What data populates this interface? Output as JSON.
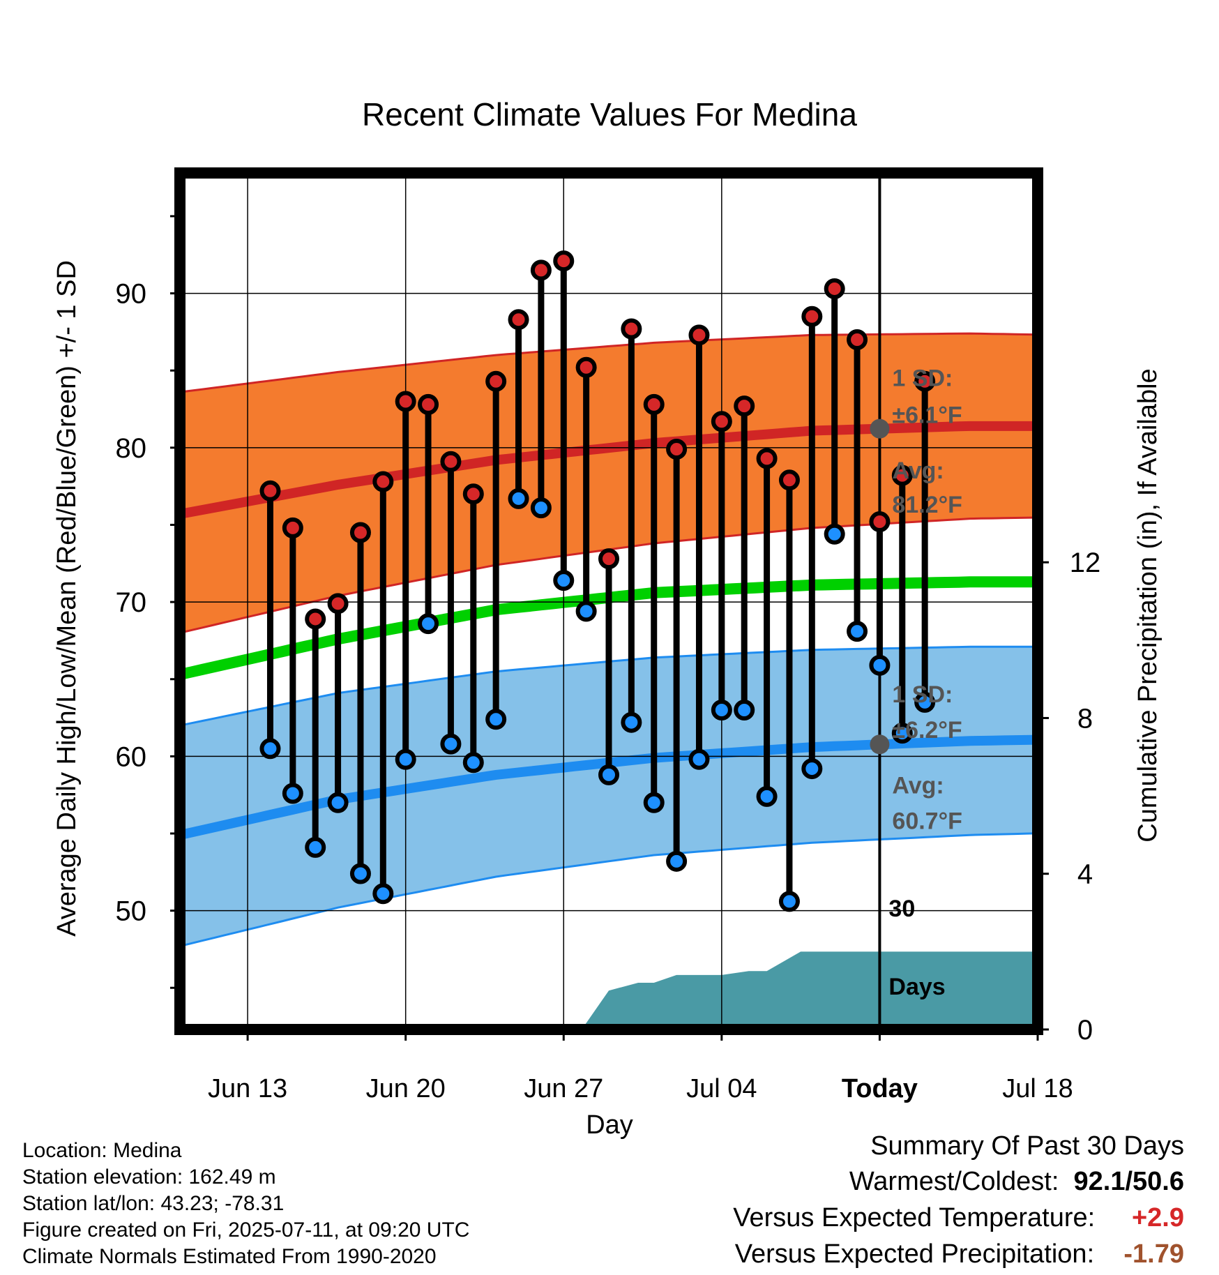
{
  "chart_data": {
    "type": "line",
    "title": "Recent Climate Values For Medina",
    "xlabel": "Day",
    "ylabel": "Average Daily High/Low/Mean (Red/Blue/Green) +/- 1 SD",
    "ylabel_right": "Cumulative Precipitation (in), If Available",
    "xlim_day": [
      -13,
      25
    ],
    "ylim": [
      42.3,
      97.8
    ],
    "y2lim": [
      0,
      22
    ],
    "y_ticks": [
      50,
      60,
      70,
      80,
      90
    ],
    "y_minor_ticks": [
      45,
      55,
      65,
      75,
      85,
      95
    ],
    "y2_ticks": [
      0,
      4,
      8,
      12
    ],
    "x_ticks": [
      {
        "day": -10,
        "label": "Jun 13"
      },
      {
        "day": -3,
        "label": "Jun 20"
      },
      {
        "day": 4,
        "label": "Jun 27"
      },
      {
        "day": 11,
        "label": "Jul 04"
      },
      {
        "day": 18,
        "label": "Today"
      },
      {
        "day": 25,
        "label": "Jul 18"
      }
    ],
    "today_day": 18,
    "grid": true,
    "normals": {
      "x": [
        -13,
        -6,
        1,
        8,
        15,
        22,
        30
      ],
      "high_mean": [
        75.7,
        77.6,
        79.2,
        80.3,
        81.1,
        81.4,
        81.4
      ],
      "high_upper": [
        83.6,
        84.9,
        86.0,
        86.8,
        87.3,
        87.4,
        87.2
      ],
      "high_lower": [
        68.0,
        70.4,
        72.4,
        73.8,
        74.8,
        75.4,
        75.6
      ],
      "mean": [
        65.3,
        67.6,
        69.5,
        70.6,
        71.1,
        71.3,
        71.3
      ],
      "low_mean": [
        54.9,
        57.2,
        58.8,
        59.9,
        60.6,
        61.0,
        61.2
      ],
      "low_upper": [
        62.0,
        64.1,
        65.5,
        66.4,
        66.9,
        67.1,
        67.1
      ],
      "low_lower": [
        47.7,
        50.2,
        52.2,
        53.6,
        54.4,
        54.9,
        55.2
      ]
    },
    "series": [
      {
        "name": "High",
        "color": "#d62728",
        "values": [
          77.2,
          74.8,
          68.9,
          69.9,
          74.5,
          77.8,
          83.0,
          82.8,
          79.1,
          77.0,
          84.3,
          88.3,
          91.5,
          92.1,
          85.2,
          72.8,
          87.7,
          82.8,
          79.9,
          87.3,
          81.7,
          82.7,
          79.3,
          77.9,
          88.5,
          90.3,
          87.0,
          75.2,
          78.2,
          84.3
        ]
      },
      {
        "name": "Low",
        "color": "#1e90ff",
        "values": [
          60.5,
          57.6,
          54.1,
          57.0,
          52.4,
          51.1,
          59.8,
          68.6,
          60.8,
          59.6,
          62.4,
          76.7,
          76.1,
          71.4,
          69.4,
          58.8,
          62.2,
          57.0,
          53.2,
          59.8,
          63.0,
          63.0,
          57.4,
          50.6,
          59.2,
          74.4,
          68.1,
          65.9,
          61.5,
          63.5
        ]
      }
    ],
    "days": [
      -9,
      -8,
      -7,
      -6,
      -5,
      -4,
      -3,
      -2,
      -1,
      0,
      1,
      2,
      3,
      4,
      5,
      6,
      7,
      8,
      9,
      10,
      11,
      12,
      13,
      14,
      15,
      16,
      17,
      18,
      19,
      20
    ],
    "precipitation": {
      "x": [
        -5.5,
        -3.8,
        0.7,
        4.8,
        6.0,
        7.3,
        8.0,
        9.0,
        11.0,
        12.2,
        13.0,
        14.5,
        20.0,
        25.0
      ],
      "cumulative": [
        0,
        0,
        0,
        0,
        1.0,
        1.2,
        1.2,
        1.4,
        1.4,
        1.5,
        1.5,
        2.0,
        2.0,
        2.0
      ]
    },
    "annotations": {
      "high_sd_label": "1 SD:",
      "high_sd_value": "±6.1°F",
      "high_avg_label": "Avg:",
      "high_avg_value": "81.2°F",
      "low_sd_label": "1 SD:",
      "low_sd_value": "±6.2°F",
      "low_avg_label": "Avg:",
      "low_avg_value": "60.7°F",
      "days_label_1": "30",
      "days_label_2": "Days"
    },
    "colors": {
      "high_band": "#f47b2e",
      "high_line": "#d02525",
      "low_band": "#85c1e9",
      "low_line": "#1e8cf0",
      "mean_line": "#00d000",
      "precip_fill": "#4a9aa5",
      "annotation_text": "#555555"
    }
  },
  "station": {
    "location": "Location: Medina",
    "elevation": "Station elevation: 162.49 m",
    "latlon": "Station lat/lon: 43.23; -78.31",
    "created": "Figure created on Fri, 2025-07-11, at 09:20 UTC",
    "normals": "Climate Normals Estimated From 1990-2020"
  },
  "summary": {
    "title": "Summary Of Past 30 Days",
    "warmest_label": "Warmest/Coldest:",
    "warmest_value": "92.1/50.6",
    "temp_label": "Versus Expected Temperature:",
    "temp_value": "+2.9",
    "temp_color": "#d62728",
    "precip_label": "Versus Expected Precipitation:",
    "precip_value": "-1.79",
    "precip_color": "#a0522d"
  }
}
